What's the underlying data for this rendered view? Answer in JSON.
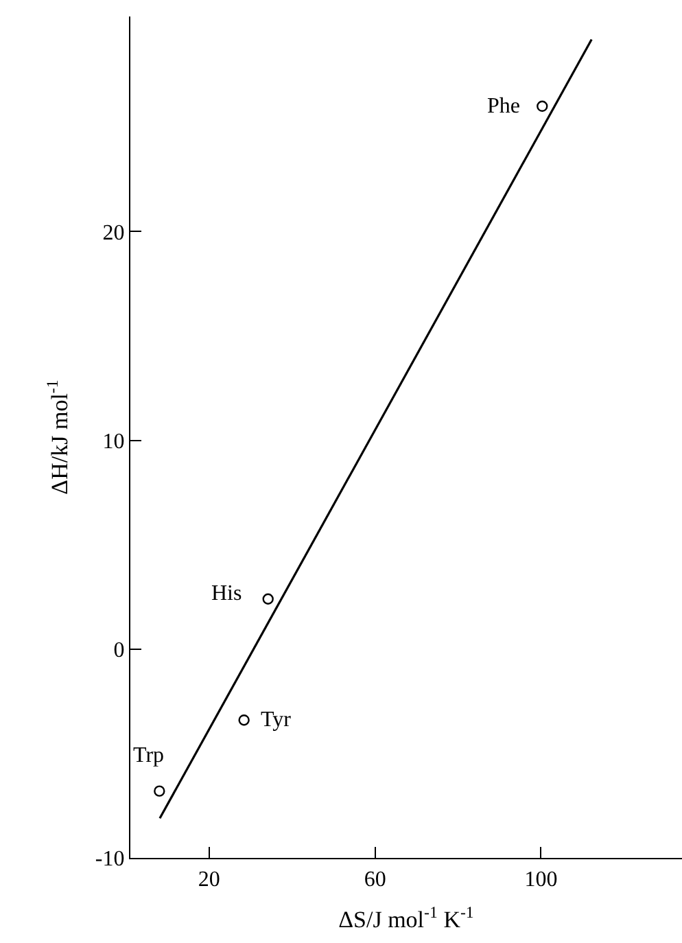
{
  "chart_data": {
    "type": "scatter",
    "xlabel": "ΔS/J mol$^{-1}$ K$^{-1}$",
    "ylabel": "ΔH/kJ mol$^{-1}$",
    "x": [
      100.3,
      34.2,
      28.4,
      8
    ],
    "series": [
      {
        "color": "#000000",
        "values": [
          26.0,
          2.4,
          -3.4,
          -6.8
        ],
        "marker": "circle"
      },
      {
        "type": "line",
        "color": "#000000",
        "x": [
          8.1,
          112.2
        ],
        "values": [
          -8.1,
          29.2
        ],
        "marker": "none",
        "line_style": "solid"
      }
    ],
    "annotations": [
      {
        "text": "Phe",
        "x": 100.3,
        "y": 26.0
      },
      {
        "text": "His",
        "x": 34.2,
        "y": 2.4
      },
      {
        "text": "Tyr",
        "x": 28.4,
        "y": -3.4
      },
      {
        "text": "Trp",
        "x": 8,
        "y": -6.8
      }
    ],
    "xlim": [
      1,
      134
    ],
    "xticks": [
      20,
      60,
      100
    ],
    "ylim": [
      -10,
      30.3
    ],
    "yticks": [
      -10,
      0,
      10,
      20
    ]
  }
}
